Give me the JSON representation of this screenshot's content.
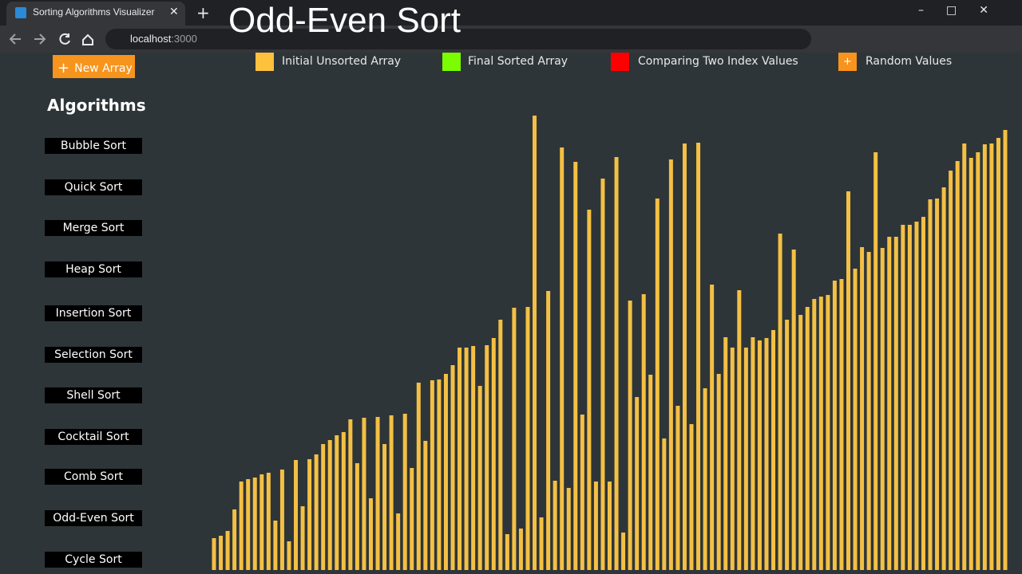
{
  "browser": {
    "tab_title": "Sorting Algorithms Visualizer",
    "url_host": "localhost",
    "url_port": ":3000"
  },
  "overlay_title": "Odd-Even Sort",
  "toolbar": {
    "new_array": "New Array"
  },
  "legend": [
    {
      "label": "Initial Unsorted Array",
      "color": "#fdc13d"
    },
    {
      "label": "Final Sorted Array",
      "color": "#7cfc00"
    },
    {
      "label": "Comparing Two Index Values",
      "color": "#ff0000"
    },
    {
      "label": "Random Values",
      "color": "#f7941d"
    }
  ],
  "sidebar": {
    "heading": "Algorithms",
    "buttons": [
      "Bubble Sort",
      "Quick Sort",
      "Merge Sort",
      "Heap Sort",
      "Insertion Sort",
      "Selection Sort",
      "Shell Sort",
      "Cocktail Sort",
      "Comb Sort",
      "Odd-Even Sort",
      "Cycle Sort"
    ]
  },
  "array": {
    "color": "#f4c044",
    "values": [
      40,
      43,
      49,
      76,
      111,
      114,
      116,
      120,
      122,
      62,
      126,
      36,
      138,
      80,
      139,
      145,
      158,
      163,
      169,
      173,
      189,
      134,
      191,
      90,
      192,
      158,
      194,
      71,
      196,
      128,
      235,
      162,
      238,
      239,
      246,
      257,
      279,
      279,
      281,
      231,
      282,
      291,
      314,
      45,
      329,
      52,
      330,
      570,
      66,
      350,
      112,
      530,
      103,
      512,
      195,
      452,
      111,
      491,
      111,
      518,
      47,
      338,
      217,
      346,
      245,
      466,
      165,
      515,
      206,
      535,
      183,
      536,
      228,
      358,
      246,
      292,
      279,
      351,
      279,
      292,
      288,
      291,
      301,
      422,
      314,
      402,
      320,
      330,
      340,
      343,
      345,
      363,
      365,
      475,
      378,
      405,
      399,
      524,
      404,
      418,
      418,
      433,
      433,
      437,
      443,
      465,
      466,
      480,
      501,
      513,
      535,
      517,
      524,
      534,
      535,
      542,
      552
    ]
  }
}
